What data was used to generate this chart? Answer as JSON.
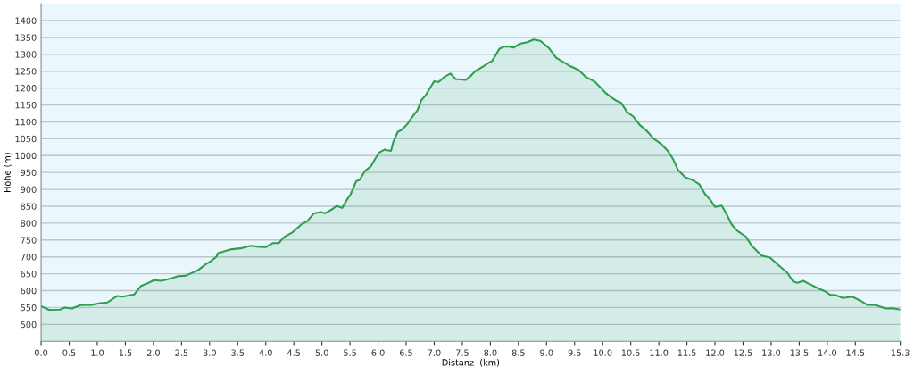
{
  "chart_data": {
    "type": "area",
    "xlabel": "Distanz  (km)",
    "ylabel": "Höhe (m)",
    "xlim": [
      0,
      15.3
    ],
    "ylim": [
      450,
      1450
    ],
    "xticks": [
      {
        "value": 0,
        "label": "0.0"
      },
      {
        "value": 0.5,
        "label": "0.5"
      },
      {
        "value": 1,
        "label": "1.0"
      },
      {
        "value": 1.5,
        "label": "1.5"
      },
      {
        "value": 2,
        "label": "2.0"
      },
      {
        "value": 2.5,
        "label": "2.5"
      },
      {
        "value": 3,
        "label": "3.0"
      },
      {
        "value": 3.5,
        "label": "3.5"
      },
      {
        "value": 4,
        "label": "4.0"
      },
      {
        "value": 4.5,
        "label": "4.5"
      },
      {
        "value": 5,
        "label": "5.0"
      },
      {
        "value": 5.5,
        "label": "5.5"
      },
      {
        "value": 6,
        "label": "6.0"
      },
      {
        "value": 6.5,
        "label": "6.5"
      },
      {
        "value": 7,
        "label": "7.0"
      },
      {
        "value": 7.5,
        "label": "7.5"
      },
      {
        "value": 8,
        "label": "8.0"
      },
      {
        "value": 8.5,
        "label": "8.5"
      },
      {
        "value": 9,
        "label": "9.0"
      },
      {
        "value": 9.5,
        "label": "9.5"
      },
      {
        "value": 10,
        "label": "10.0"
      },
      {
        "value": 10.5,
        "label": "10.5"
      },
      {
        "value": 11,
        "label": "11.0"
      },
      {
        "value": 11.5,
        "label": "11.5"
      },
      {
        "value": 12,
        "label": "12.0"
      },
      {
        "value": 12.5,
        "label": "12.5"
      },
      {
        "value": 13,
        "label": "13.0"
      },
      {
        "value": 13.5,
        "label": "13.5"
      },
      {
        "value": 14,
        "label": "14.0"
      },
      {
        "value": 14.5,
        "label": "14.5"
      },
      {
        "value": 15.3,
        "label": "15.3"
      }
    ],
    "yticks": [
      500,
      550,
      600,
      650,
      700,
      750,
      800,
      850,
      900,
      950,
      1000,
      1050,
      1100,
      1150,
      1200,
      1250,
      1300,
      1350,
      1400
    ],
    "grid": "y",
    "legend": false,
    "series": [
      {
        "color": "#2e9e4f",
        "x": [
          0,
          0.14,
          0.34,
          0.42,
          0.55,
          0.7,
          0.9,
          1.05,
          1.18,
          1.35,
          1.45,
          1.66,
          1.78,
          1.86,
          2.01,
          2.14,
          2.31,
          2.44,
          2.57,
          2.79,
          2.92,
          3.02,
          3.12,
          3.15,
          3.37,
          3.58,
          3.73,
          3.88,
          4.0,
          4.13,
          4.23,
          4.33,
          4.48,
          4.64,
          4.74,
          4.86,
          4.98,
          5.06,
          5.19,
          5.26,
          5.36,
          5.44,
          5.51,
          5.61,
          5.67,
          5.77,
          5.87,
          5.94,
          6.02,
          6.12,
          6.17,
          6.23,
          6.27,
          6.35,
          6.42,
          6.52,
          6.6,
          6.7,
          6.77,
          6.85,
          6.95,
          7.0,
          7.08,
          7.18,
          7.29,
          7.38,
          7.56,
          7.63,
          7.73,
          7.88,
          7.98,
          8.03,
          8.16,
          8.24,
          8.34,
          8.41,
          8.54,
          8.66,
          8.77,
          8.89,
          9.04,
          9.17,
          9.27,
          9.42,
          9.57,
          9.7,
          9.85,
          9.95,
          10.05,
          10.15,
          10.25,
          10.33,
          10.43,
          10.55,
          10.66,
          10.78,
          10.91,
          11.04,
          11.16,
          11.26,
          11.34,
          11.47,
          11.62,
          11.72,
          11.82,
          11.92,
          12.0,
          12.12,
          12.2,
          12.3,
          12.4,
          12.55,
          12.66,
          12.83,
          12.98,
          13.14,
          13.29,
          13.39,
          13.47,
          13.57,
          13.69,
          13.85,
          13.97,
          14.05,
          14.15,
          14.28,
          14.45,
          14.58,
          14.71,
          14.86,
          15.04,
          15.16,
          15.3
        ],
        "values": [
          554,
          543,
          544,
          550,
          547,
          557,
          558,
          563,
          565,
          584,
          582,
          589,
          614,
          619,
          631,
          629,
          636,
          643,
          644,
          660,
          677,
          687,
          700,
          711,
          722,
          726,
          733,
          730,
          729,
          741,
          741,
          759,
          773,
          797,
          806,
          829,
          833,
          829,
          842,
          851,
          845,
          868,
          885,
          924,
          928,
          955,
          968,
          988,
          1009,
          1018,
          1016,
          1014,
          1040,
          1070,
          1076,
          1093,
          1113,
          1134,
          1164,
          1179,
          1207,
          1220,
          1218,
          1233,
          1243,
          1227,
          1224,
          1233,
          1250,
          1265,
          1276,
          1280,
          1316,
          1323,
          1323,
          1320,
          1332,
          1336,
          1344,
          1340,
          1319,
          1290,
          1280,
          1265,
          1254,
          1233,
          1220,
          1204,
          1186,
          1173,
          1162,
          1156,
          1130,
          1115,
          1091,
          1074,
          1050,
          1035,
          1014,
          988,
          958,
          936,
          926,
          915,
          887,
          868,
          848,
          852,
          829,
          795,
          777,
          760,
          732,
          704,
          698,
          674,
          653,
          627,
          623,
          629,
          619,
          606,
          597,
          588,
          587,
          578,
          582,
          571,
          558,
          557,
          547,
          548,
          544
        ]
      }
    ]
  }
}
